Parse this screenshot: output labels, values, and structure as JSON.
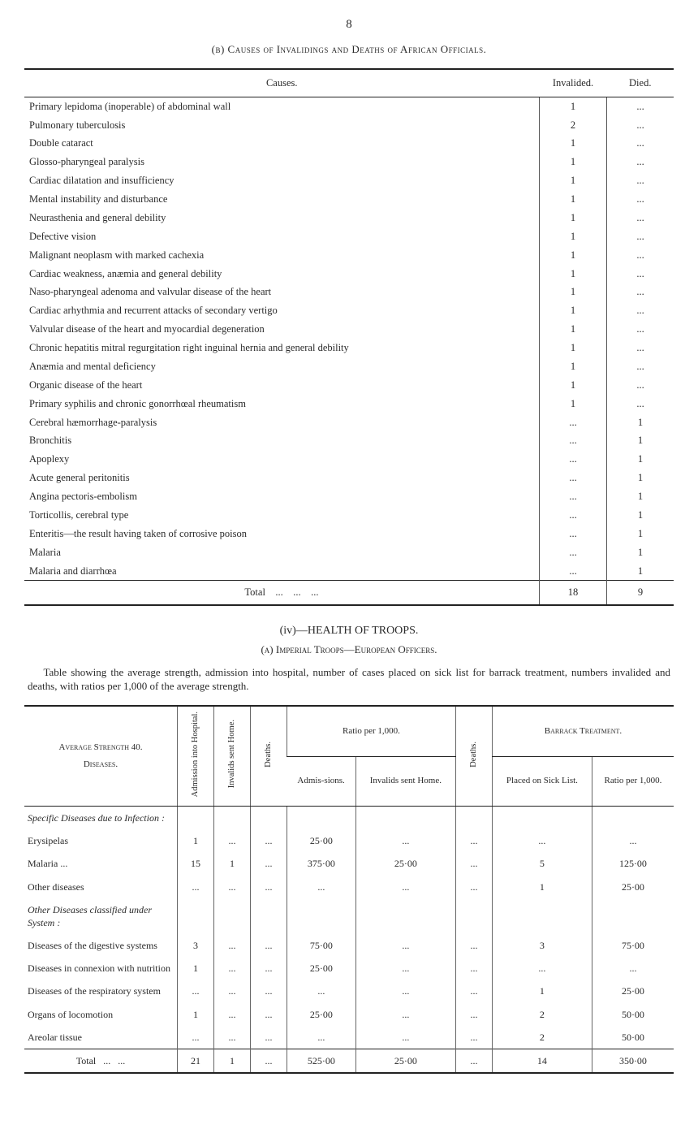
{
  "page_number": "8",
  "heading_b": "(b) Causes of Invalidings and Deaths of African Officials.",
  "causes_table": {
    "columns": [
      "Causes.",
      "Invalided.",
      "Died."
    ],
    "rows": [
      {
        "cause": "Primary lepidoma (inoperable) of abdominal wall",
        "invalided": "1",
        "died": "..."
      },
      {
        "cause": "Pulmonary tuberculosis",
        "invalided": "2",
        "died": "..."
      },
      {
        "cause": "Double cataract",
        "invalided": "1",
        "died": "..."
      },
      {
        "cause": "Glosso-pharyngeal paralysis",
        "invalided": "1",
        "died": "..."
      },
      {
        "cause": "Cardiac dilatation and insufficiency",
        "invalided": "1",
        "died": "..."
      },
      {
        "cause": "Mental instability and disturbance",
        "invalided": "1",
        "died": "..."
      },
      {
        "cause": "Neurasthenia and general debility",
        "invalided": "1",
        "died": "..."
      },
      {
        "cause": "Defective vision",
        "invalided": "1",
        "died": "..."
      },
      {
        "cause": "Malignant neoplasm with marked cachexia",
        "invalided": "1",
        "died": "..."
      },
      {
        "cause": "Cardiac weakness, anæmia and general debility",
        "invalided": "1",
        "died": "..."
      },
      {
        "cause": "Naso-pharyngeal adenoma and valvular disease of the heart",
        "invalided": "1",
        "died": "..."
      },
      {
        "cause": "Cardiac arhythmia and recurrent attacks of secondary vertigo",
        "invalided": "1",
        "died": "..."
      },
      {
        "cause": "Valvular disease of the heart and myocardial degeneration",
        "invalided": "1",
        "died": "..."
      },
      {
        "cause": "Chronic hepatitis mitral regurgitation right inguinal hernia and general debility",
        "invalided": "1",
        "died": "...",
        "indent": true
      },
      {
        "cause": "Anæmia and mental deficiency",
        "invalided": "1",
        "died": "..."
      },
      {
        "cause": "Organic disease of the heart",
        "invalided": "1",
        "died": "..."
      },
      {
        "cause": "Primary syphilis and chronic gonorrhœal rheumatism",
        "invalided": "1",
        "died": "..."
      },
      {
        "cause": "Cerebral hæmorrhage-paralysis",
        "invalided": "...",
        "died": "1"
      },
      {
        "cause": "Bronchitis",
        "invalided": "...",
        "died": "1"
      },
      {
        "cause": "Apoplexy",
        "invalided": "...",
        "died": "1"
      },
      {
        "cause": "Acute general peritonitis",
        "invalided": "...",
        "died": "1"
      },
      {
        "cause": "Angina pectoris-embolism",
        "invalided": "...",
        "died": "1"
      },
      {
        "cause": "Torticollis, cerebral type",
        "invalided": "...",
        "died": "1"
      },
      {
        "cause": "Enteritis—the result having taken of corrosive poison",
        "invalided": "...",
        "died": "1"
      },
      {
        "cause": "Malaria",
        "invalided": "...",
        "died": "1"
      },
      {
        "cause": "Malaria and diarrhœa",
        "invalided": "...",
        "died": "1"
      }
    ],
    "total": {
      "label": "Total",
      "invalided": "18",
      "died": "9"
    }
  },
  "sec_iv_title": "(iv)—HEALTH OF TROOPS.",
  "sec_iv_sub": "(a) Imperial Troops—European Officers.",
  "narrative": "Table showing the average strength, admission into hospital, number of cases placed on sick list for barrack treatment, numbers invalided and deaths, with ratios per 1,000 of the average strength.",
  "strength_table": {
    "header": {
      "col1_top": "Average Strength 40.",
      "col1_bottom": "Diseases.",
      "col2": "Admission into Hospital.",
      "col3": "Invalids sent Home.",
      "col4": "Deaths.",
      "ratio_group": "Ratio per 1,000.",
      "col5": "Admis-sions.",
      "col6": "Invalids sent Home.",
      "col7": "Deaths.",
      "barrack_group": "Barrack Treatment.",
      "col8": "Placed on Sick List.",
      "col9": "Ratio per 1,000."
    },
    "rows": [
      {
        "type": "group",
        "label": "Specific Diseases due to Infection :"
      },
      {
        "label": "Erysipelas",
        "c2": "1",
        "c3": "...",
        "c4": "...",
        "c5": "25·00",
        "c6": "...",
        "c7": "...",
        "c8": "...",
        "c9": "..."
      },
      {
        "label": "Malaria ...",
        "c2": "15",
        "c3": "1",
        "c4": "...",
        "c5": "375·00",
        "c6": "25·00",
        "c7": "...",
        "c8": "5",
        "c9": "125·00"
      },
      {
        "label": "Other diseases",
        "c2": "...",
        "c3": "...",
        "c4": "...",
        "c5": "...",
        "c6": "...",
        "c7": "...",
        "c8": "1",
        "c9": "25·00"
      },
      {
        "type": "group",
        "label": "Other Diseases classified under System :"
      },
      {
        "label": "Diseases of the digestive systems",
        "c2": "3",
        "c3": "...",
        "c4": "...",
        "c5": "75·00",
        "c6": "...",
        "c7": "...",
        "c8": "3",
        "c9": "75·00"
      },
      {
        "label": "Diseases in connexion with nutrition",
        "c2": "1",
        "c3": "...",
        "c4": "...",
        "c5": "25·00",
        "c6": "...",
        "c7": "...",
        "c8": "...",
        "c9": "..."
      },
      {
        "label": "Diseases of the respiratory system",
        "c2": "...",
        "c3": "...",
        "c4": "...",
        "c5": "...",
        "c6": "...",
        "c7": "...",
        "c8": "1",
        "c9": "25·00"
      },
      {
        "label": "Organs of locomotion",
        "c2": "1",
        "c3": "...",
        "c4": "...",
        "c5": "25·00",
        "c6": "...",
        "c7": "...",
        "c8": "2",
        "c9": "50·00"
      },
      {
        "label": "Areolar tissue",
        "c2": "...",
        "c3": "...",
        "c4": "...",
        "c5": "...",
        "c6": "...",
        "c7": "...",
        "c8": "2",
        "c9": "50·00"
      }
    ],
    "total": {
      "label": "Total",
      "c2": "21",
      "c3": "1",
      "c4": "...",
      "c5": "525·00",
      "c6": "25·00",
      "c7": "...",
      "c8": "14",
      "c9": "350·00"
    }
  }
}
